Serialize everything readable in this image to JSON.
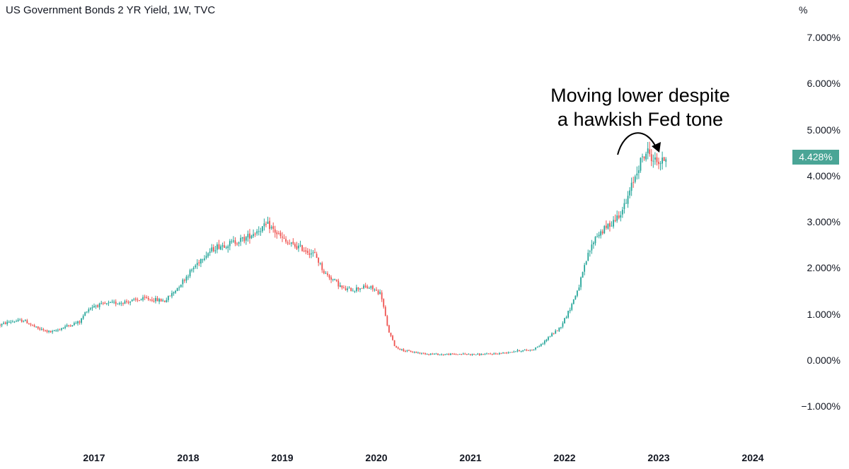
{
  "title": "US Government Bonds 2 YR Yield, 1W, TVC",
  "axis_unit": "%",
  "last_price_label": "4.428%",
  "annotation": {
    "line1": "Moving lower despite",
    "line2": "a hawkish Fed tone"
  },
  "colors": {
    "up": "#26a69a",
    "down": "#ef5350",
    "last_price_bg": "#4aa596",
    "annotation": "#000000"
  },
  "y_ticks": [
    "7.000%",
    "6.000%",
    "5.000%",
    "4.000%",
    "3.000%",
    "2.000%",
    "1.000%",
    "0.000%",
    "−1.000%"
  ],
  "y_tick_values": [
    7,
    6,
    5,
    4,
    3,
    2,
    1,
    0,
    -1
  ],
  "x_ticks": [
    "2017",
    "2018",
    "2019",
    "2020",
    "2021",
    "2022",
    "2023",
    "2024"
  ],
  "chart_data": {
    "type": "candlestick",
    "title": "US Government Bonds 2 YR Yield, 1W, TVC",
    "ylabel": "%",
    "ylim": [
      -1.5,
      7.5
    ],
    "xlim": [
      2016.0,
      2024.3
    ],
    "grid": false,
    "last_value": 4.428,
    "path": [
      [
        2016.0,
        0.78
      ],
      [
        2016.1,
        0.85
      ],
      [
        2016.25,
        0.88
      ],
      [
        2016.4,
        0.7
      ],
      [
        2016.55,
        0.62
      ],
      [
        2016.7,
        0.75
      ],
      [
        2016.85,
        0.85
      ],
      [
        2016.92,
        1.1
      ],
      [
        2017.0,
        1.2
      ],
      [
        2017.2,
        1.25
      ],
      [
        2017.4,
        1.3
      ],
      [
        2017.55,
        1.35
      ],
      [
        2017.75,
        1.3
      ],
      [
        2017.85,
        1.5
      ],
      [
        2018.0,
        1.88
      ],
      [
        2018.15,
        2.25
      ],
      [
        2018.3,
        2.48
      ],
      [
        2018.45,
        2.55
      ],
      [
        2018.6,
        2.65
      ],
      [
        2018.75,
        2.85
      ],
      [
        2018.85,
        2.95
      ],
      [
        2018.95,
        2.75
      ],
      [
        2019.05,
        2.55
      ],
      [
        2019.2,
        2.45
      ],
      [
        2019.35,
        2.3
      ],
      [
        2019.45,
        1.9
      ],
      [
        2019.55,
        1.75
      ],
      [
        2019.65,
        1.55
      ],
      [
        2019.75,
        1.55
      ],
      [
        2019.85,
        1.6
      ],
      [
        2019.95,
        1.58
      ],
      [
        2020.05,
        1.45
      ],
      [
        2020.12,
        0.7
      ],
      [
        2020.2,
        0.3
      ],
      [
        2020.3,
        0.22
      ],
      [
        2020.5,
        0.16
      ],
      [
        2020.7,
        0.14
      ],
      [
        2020.9,
        0.15
      ],
      [
        2021.1,
        0.14
      ],
      [
        2021.3,
        0.16
      ],
      [
        2021.5,
        0.22
      ],
      [
        2021.65,
        0.24
      ],
      [
        2021.75,
        0.35
      ],
      [
        2021.85,
        0.55
      ],
      [
        2021.95,
        0.72
      ],
      [
        2022.05,
        1.1
      ],
      [
        2022.15,
        1.6
      ],
      [
        2022.25,
        2.3
      ],
      [
        2022.33,
        2.7
      ],
      [
        2022.45,
        2.9
      ],
      [
        2022.55,
        3.1
      ],
      [
        2022.65,
        3.4
      ],
      [
        2022.73,
        3.9
      ],
      [
        2022.8,
        4.3
      ],
      [
        2022.88,
        4.55
      ],
      [
        2022.95,
        4.35
      ],
      [
        2023.03,
        4.3
      ],
      [
        2023.08,
        4.428
      ]
    ]
  }
}
